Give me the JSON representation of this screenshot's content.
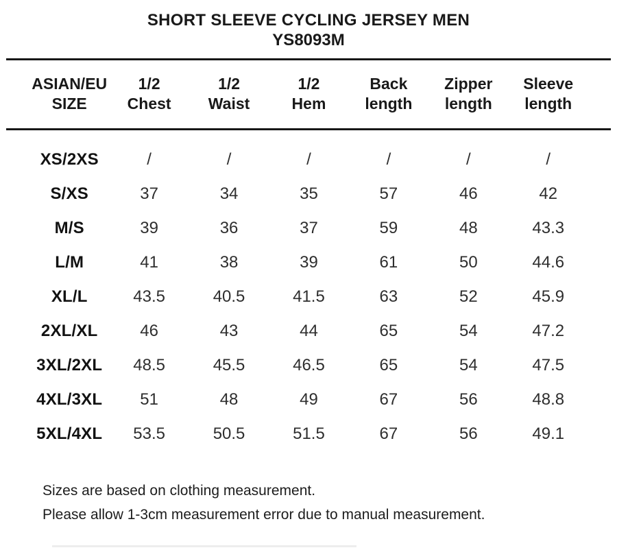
{
  "header": {
    "title": "SHORT SLEEVE CYCLING JERSEY MEN",
    "model": "YS8093M"
  },
  "table": {
    "columns": [
      {
        "line1": "ASIAN/EU",
        "line2": "SIZE"
      },
      {
        "line1": "1/2",
        "line2": "Chest"
      },
      {
        "line1": "1/2",
        "line2": "Waist"
      },
      {
        "line1": "1/2",
        "line2": "Hem"
      },
      {
        "line1": "Back",
        "line2": "length"
      },
      {
        "line1": "Zipper",
        "line2": "length"
      },
      {
        "line1": "Sleeve",
        "line2": "length"
      }
    ],
    "rows": [
      {
        "size": "XS/2XS",
        "values": [
          "/",
          "/",
          "/",
          "/",
          "/",
          "/"
        ]
      },
      {
        "size": "S/XS",
        "values": [
          "37",
          "34",
          "35",
          "57",
          "46",
          "42"
        ]
      },
      {
        "size": "M/S",
        "values": [
          "39",
          "36",
          "37",
          "59",
          "48",
          "43.3"
        ]
      },
      {
        "size": "L/M",
        "values": [
          "41",
          "38",
          "39",
          "61",
          "50",
          "44.6"
        ]
      },
      {
        "size": "XL/L",
        "values": [
          "43.5",
          "40.5",
          "41.5",
          "63",
          "52",
          "45.9"
        ]
      },
      {
        "size": "2XL/XL",
        "values": [
          "46",
          "43",
          "44",
          "65",
          "54",
          "47.2"
        ]
      },
      {
        "size": "3XL/2XL",
        "values": [
          "48.5",
          "45.5",
          "46.5",
          "65",
          "54",
          "47.5"
        ]
      },
      {
        "size": "4XL/3XL",
        "values": [
          "51",
          "48",
          "49",
          "67",
          "56",
          "48.8"
        ]
      },
      {
        "size": "5XL/4XL",
        "values": [
          "53.5",
          "50.5",
          "51.5",
          "67",
          "56",
          "49.1"
        ]
      }
    ]
  },
  "notes": {
    "line1": "Sizes are based on clothing measurement.",
    "line2": "Please allow 1-3cm measurement error due to manual measurement."
  },
  "colors": {
    "text": "#1d1d1d",
    "rule": "#171717",
    "background": "#ffffff"
  }
}
